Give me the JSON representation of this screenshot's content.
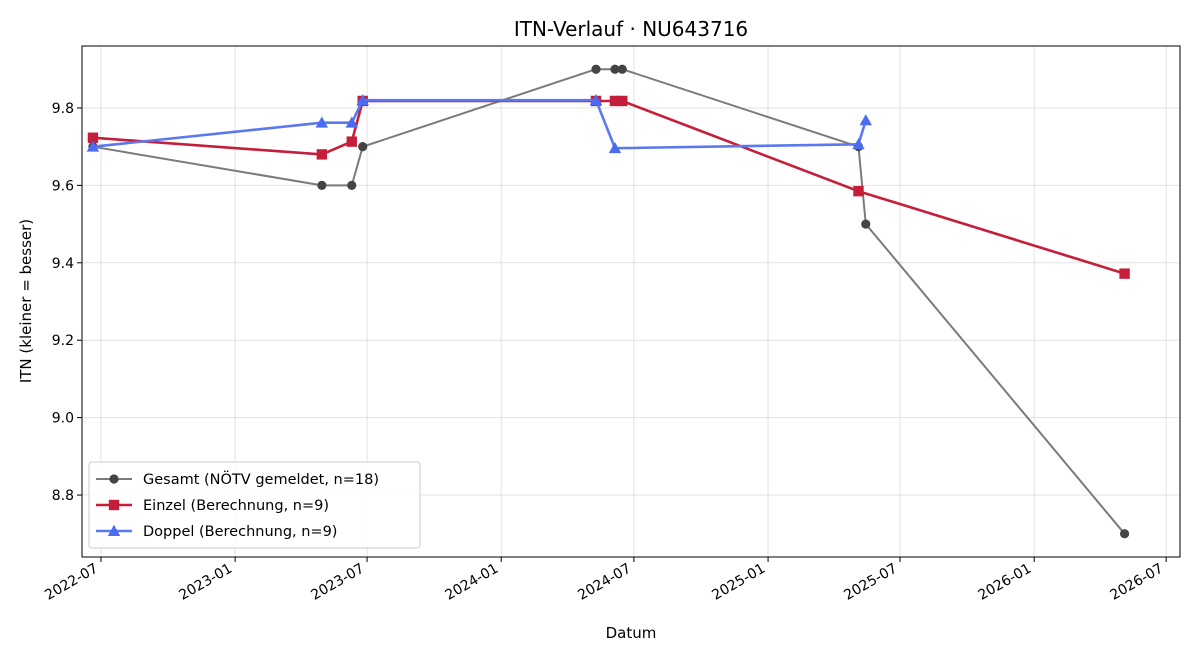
{
  "chart_data": {
    "type": "line",
    "title": "ITN-Verlauf · NU643716",
    "xlabel": "Datum",
    "ylabel": "ITN  (kleiner = besser)",
    "x_axis_type": "date",
    "xlim": [
      "2022-06-05",
      "2026-07-20"
    ],
    "ylim": [
      8.64,
      9.96
    ],
    "x_ticks": [
      {
        "date": "2022-07-01",
        "label": "2022-07"
      },
      {
        "date": "2023-01-01",
        "label": "2023-01"
      },
      {
        "date": "2023-07-01",
        "label": "2023-07"
      },
      {
        "date": "2024-01-01",
        "label": "2024-01"
      },
      {
        "date": "2024-07-01",
        "label": "2024-07"
      },
      {
        "date": "2025-01-01",
        "label": "2025-01"
      },
      {
        "date": "2025-07-01",
        "label": "2025-07"
      },
      {
        "date": "2026-01-01",
        "label": "2026-01"
      },
      {
        "date": "2026-07-01",
        "label": "2026-07"
      }
    ],
    "y_ticks": [
      8.8,
      9.0,
      9.2,
      9.4,
      9.6,
      9.8
    ],
    "y_tick_labels": [
      "8.8",
      "9.0",
      "9.2",
      "9.4",
      "9.6",
      "9.8"
    ],
    "grid": true,
    "legend_position": "lower-left",
    "series": [
      {
        "name": "Gesamt (NÖTV gemeldet, n=18)",
        "color": "#444444",
        "line_color": "#7a7a7a",
        "marker": "circle",
        "points": [
          {
            "x": "2022-06-20",
            "y": 9.7
          },
          {
            "x": "2023-04-30",
            "y": 9.6
          },
          {
            "x": "2023-06-10",
            "y": 9.6
          },
          {
            "x": "2023-06-25",
            "y": 9.7
          },
          {
            "x": "2024-05-10",
            "y": 9.9
          },
          {
            "x": "2024-06-05",
            "y": 9.9
          },
          {
            "x": "2024-06-15",
            "y": 9.9
          },
          {
            "x": "2025-05-05",
            "y": 9.7
          },
          {
            "x": "2025-05-15",
            "y": 9.5
          },
          {
            "x": "2026-05-05",
            "y": 8.7
          }
        ]
      },
      {
        "name": "Einzel (Berechnung, n=9)",
        "color": "#c41e3a",
        "line_color": "#c41e3a",
        "marker": "square",
        "points": [
          {
            "x": "2022-06-20",
            "y": 9.723
          },
          {
            "x": "2023-04-30",
            "y": 9.68
          },
          {
            "x": "2023-06-10",
            "y": 9.713
          },
          {
            "x": "2023-06-25",
            "y": 9.818
          },
          {
            "x": "2024-05-10",
            "y": 9.818
          },
          {
            "x": "2024-06-05",
            "y": 9.818
          },
          {
            "x": "2024-06-15",
            "y": 9.818
          },
          {
            "x": "2025-05-05",
            "y": 9.585
          },
          {
            "x": "2026-05-05",
            "y": 9.372
          }
        ]
      },
      {
        "name": "Doppel (Berechnung, n=9)",
        "color": "#4a6cf0",
        "line_color": "#5b78ee",
        "marker": "triangle",
        "points": [
          {
            "x": "2022-06-20",
            "y": 9.7
          },
          {
            "x": "2023-04-30",
            "y": 9.762
          },
          {
            "x": "2023-06-10",
            "y": 9.762
          },
          {
            "x": "2023-06-25",
            "y": 9.82
          },
          {
            "x": "2024-05-10",
            "y": 9.82
          },
          {
            "x": "2024-06-05",
            "y": 9.696
          },
          {
            "x": "2025-05-05",
            "y": 9.706
          },
          {
            "x": "2025-05-15",
            "y": 9.768
          }
        ]
      }
    ]
  }
}
